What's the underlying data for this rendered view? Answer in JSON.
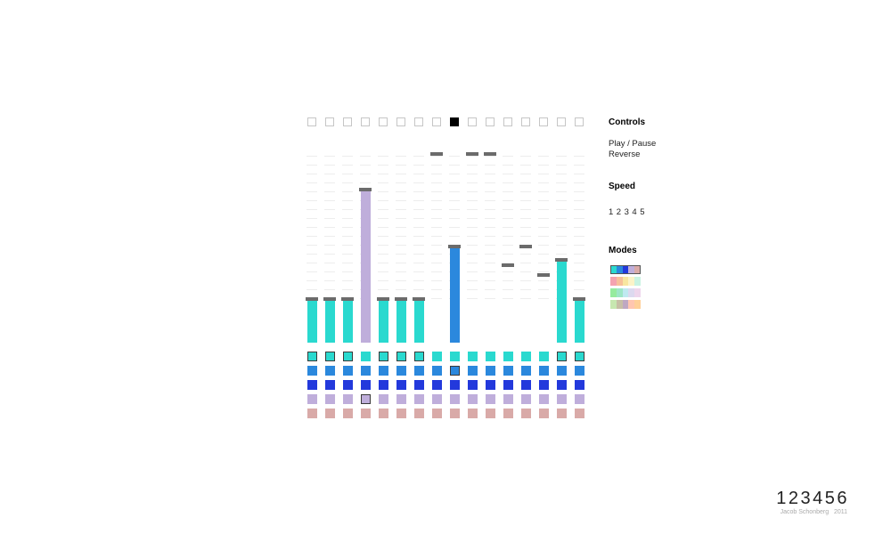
{
  "controls": {
    "heading": "Controls",
    "play_pause": "Play / Pause",
    "reverse": "Reverse"
  },
  "speed": {
    "heading": "Speed",
    "options": [
      "1",
      "2",
      "3",
      "4",
      "5"
    ]
  },
  "modes": {
    "heading": "Modes",
    "palettes": [
      [
        "#2ad9cf",
        "#2b88dd",
        "#2339dc",
        "#bfaedb",
        "#d9aaa8"
      ],
      [
        "#f4a3b0",
        "#f7c09a",
        "#f8e6a0",
        "#fbf3c8",
        "#c9f3e2"
      ],
      [
        "#96eb9e",
        "#9ee6c6",
        "#bfe9f0",
        "#dcd9ef",
        "#eed6ec"
      ],
      [
        "#c7e7b0",
        "#c7bfa6",
        "#bfa8c2",
        "#ffc6b0",
        "#ffd099"
      ]
    ],
    "selected_index": 0
  },
  "sequencer": {
    "steps": 16,
    "active_step": 8,
    "max_level": 100,
    "levels": [
      22,
      22,
      22,
      81,
      22,
      22,
      22,
      100,
      50,
      100,
      100,
      40,
      50,
      35,
      43,
      22
    ],
    "bar_colors": [
      "#2ad9cf",
      "#2ad9cf",
      "#2ad9cf",
      "#bfaedb",
      "#2ad9cf",
      "#2ad9cf",
      "#2ad9cf",
      "#2ad9cf",
      "#2b88dd",
      "#2ad9cf",
      "#2ad9cf",
      "#2ad9cf",
      "#2ad9cf",
      "#2ad9cf",
      "#2ad9cf",
      "#2ad9cf"
    ],
    "filled_bars": [
      true,
      true,
      true,
      true,
      true,
      true,
      true,
      false,
      true,
      false,
      false,
      false,
      false,
      false,
      true,
      true
    ],
    "selected_row": [
      0,
      0,
      0,
      3,
      0,
      0,
      0,
      -1,
      1,
      -1,
      -1,
      -1,
      -1,
      -1,
      0,
      0
    ],
    "row_colors": [
      "#2ad9cf",
      "#2b88dd",
      "#2339dc",
      "#bfaedb",
      "#d9aaa8"
    ]
  },
  "footer": {
    "logo": "123456",
    "author": "Jacob Schonberg",
    "year": "2011"
  }
}
